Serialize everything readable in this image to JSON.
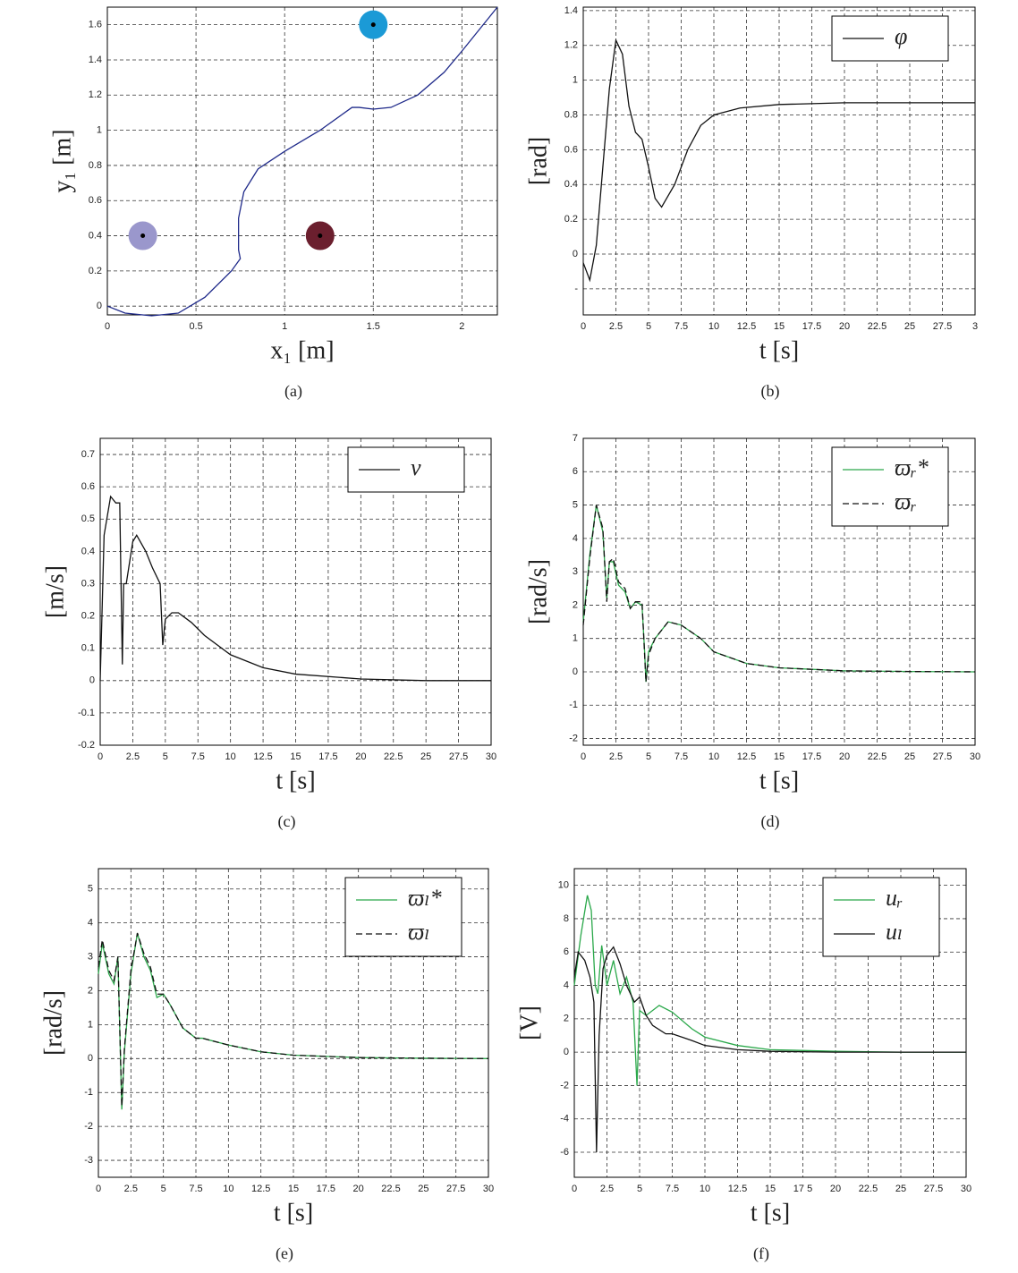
{
  "chart_data": [
    {
      "type": "line",
      "caption": "(a)",
      "xlabel": "x₁ [m]",
      "ylabel": "y₁ [m]",
      "xlim": [
        0,
        2.2
      ],
      "ylim": [
        -0.05,
        1.7
      ],
      "xticks": [
        0,
        0.5,
        1,
        1.5,
        2
      ],
      "yticks": [
        0,
        0.2,
        0.4,
        0.6,
        0.8,
        1,
        1.2,
        1.4,
        1.6
      ],
      "grid": true,
      "series": [
        {
          "color": "#1f2a8a",
          "x": [
            0,
            0.1,
            0.25,
            0.4,
            0.55,
            0.7,
            0.75,
            0.74,
            0.74,
            0.77,
            0.85,
            1,
            1.2,
            1.38,
            1.42,
            1.5,
            1.6,
            1.75,
            1.9,
            2,
            2.2
          ],
          "values": [
            0,
            -0.04,
            -0.055,
            -0.04,
            0.05,
            0.2,
            0.27,
            0.32,
            0.5,
            0.65,
            0.78,
            0.88,
            1,
            1.13,
            1.13,
            1.12,
            1.13,
            1.2,
            1.33,
            1.45,
            1.7
          ]
        }
      ],
      "points": [
        {
          "x": 0.2,
          "y": 0.4,
          "color": "#9a97cc"
        },
        {
          "x": 1.2,
          "y": 0.4,
          "color": "#6b1f2e"
        },
        {
          "x": 1.5,
          "y": 1.6,
          "color": "#1b9ad6"
        }
      ]
    },
    {
      "type": "line",
      "caption": "(b)",
      "xlabel": "t [s]",
      "ylabel": "[rad]",
      "legend": "upper right",
      "xlim": [
        0,
        30
      ],
      "ylim": [
        -0.35,
        1.42
      ],
      "xticks": [
        0,
        2.5,
        5,
        7.5,
        10,
        12.5,
        15,
        17.5,
        20,
        22.5,
        25,
        27.5,
        {
          "value": 30,
          "label": "3"
        }
      ],
      "yticks": [
        {
          "value": -0.2,
          "label": "-"
        },
        0,
        0.2,
        0.4,
        0.6,
        0.8,
        1,
        1.2,
        1.4
      ],
      "grid": true,
      "series": [
        {
          "name": "φ",
          "color": "#111111",
          "x": [
            0,
            0.5,
            1,
            1.5,
            2,
            2.5,
            3,
            3.5,
            4,
            4.5,
            5,
            5.5,
            6,
            7,
            8,
            9,
            10,
            12,
            15,
            20,
            25,
            30
          ],
          "values": [
            -0.05,
            -0.15,
            0.05,
            0.5,
            0.95,
            1.23,
            1.15,
            0.85,
            0.7,
            0.66,
            0.5,
            0.32,
            0.27,
            0.4,
            0.6,
            0.74,
            0.8,
            0.84,
            0.86,
            0.87,
            0.87,
            0.87
          ]
        }
      ]
    },
    {
      "type": "line",
      "caption": "(c)",
      "xlabel": "t [s]",
      "ylabel": "[m/s]",
      "legend": "upper right",
      "xlim": [
        0,
        30
      ],
      "ylim": [
        -0.2,
        0.75
      ],
      "xticks": [
        0,
        2.5,
        5,
        7.5,
        10,
        12.5,
        15,
        17.5,
        20,
        22.5,
        25,
        27.5,
        30
      ],
      "yticks": [
        -0.2,
        -0.1,
        0,
        0.1,
        0.2,
        0.3,
        0.4,
        0.5,
        0.6,
        0.7
      ],
      "grid": true,
      "series": [
        {
          "name": "v",
          "color": "#111111",
          "x": [
            0,
            0.3,
            0.8,
            1.2,
            1.5,
            1.7,
            1.8,
            2,
            2.5,
            2.8,
            3.5,
            4,
            4.6,
            4.8,
            5,
            5.5,
            6,
            7,
            8,
            10,
            12.5,
            15,
            20,
            25,
            30
          ],
          "values": [
            0,
            0.45,
            0.57,
            0.55,
            0.55,
            0.05,
            0.3,
            0.3,
            0.43,
            0.45,
            0.4,
            0.35,
            0.3,
            0.11,
            0.19,
            0.21,
            0.21,
            0.18,
            0.14,
            0.08,
            0.04,
            0.02,
            0.005,
            0,
            0
          ]
        }
      ]
    },
    {
      "type": "line",
      "caption": "(d)",
      "xlabel": "t [s]",
      "ylabel": "[rad/s]",
      "legend": "upper right",
      "xlim": [
        0,
        30
      ],
      "ylim": [
        -2.2,
        7
      ],
      "xticks": [
        0,
        2.5,
        5,
        7.5,
        10,
        12.5,
        15,
        17.5,
        20,
        22.5,
        25,
        27.5,
        30
      ],
      "yticks": [
        -2,
        -1,
        0,
        1,
        2,
        3,
        4,
        5,
        6,
        7
      ],
      "grid": true,
      "series": [
        {
          "name": "ϖᵣ*",
          "color": "#2aa84a",
          "x": [
            0,
            0.5,
            1,
            1.5,
            1.8,
            2,
            2.3,
            2.7,
            3.2,
            3.6,
            4,
            4.5,
            4.7,
            4.8,
            5,
            5.5,
            6.5,
            7.5,
            9,
            10,
            12.5,
            15,
            20,
            25,
            30
          ],
          "values": [
            1.5,
            3.5,
            5,
            4.2,
            2.2,
            3.3,
            3.3,
            2.6,
            2.4,
            1.9,
            2.1,
            2,
            0.6,
            -0.3,
            0.6,
            1,
            1.5,
            1.4,
            1,
            0.6,
            0.25,
            0.12,
            0.03,
            0.01,
            0
          ]
        },
        {
          "name": "ϖᵣ",
          "color": "#111111",
          "linestyle": "dashed",
          "x": [
            0,
            0.5,
            1,
            1.5,
            1.8,
            2,
            2.3,
            2.7,
            3.2,
            3.6,
            4,
            4.5,
            4.7,
            4.8,
            5,
            5.5,
            6.5,
            7.5,
            9,
            10,
            12.5,
            15,
            20,
            25,
            30
          ],
          "values": [
            1.4,
            3.4,
            5,
            4.3,
            2.1,
            3.3,
            3.4,
            2.7,
            2.5,
            1.9,
            2.1,
            2.1,
            0.5,
            -0.3,
            0.5,
            1,
            1.5,
            1.4,
            1,
            0.6,
            0.25,
            0.12,
            0.03,
            0.01,
            0
          ]
        }
      ]
    },
    {
      "type": "line",
      "caption": "(e)",
      "xlabel": "t [s]",
      "ylabel": "[rad/s]",
      "legend": "upper right",
      "xlim": [
        0,
        30
      ],
      "ylim": [
        -3.5,
        5.6
      ],
      "xticks": [
        0,
        2.5,
        5,
        7.5,
        10,
        12.5,
        15,
        17.5,
        20,
        22.5,
        25,
        27.5,
        30
      ],
      "yticks": [
        -3,
        -2,
        -1,
        0,
        1,
        2,
        3,
        4,
        5
      ],
      "grid": true,
      "series": [
        {
          "name": "ϖₗ*",
          "color": "#2aa84a",
          "x": [
            0,
            0.3,
            0.8,
            1.2,
            1.5,
            1.8,
            2,
            2.5,
            3,
            3.5,
            4,
            4.5,
            5,
            5.5,
            6.5,
            7.5,
            8,
            10,
            12.5,
            15,
            20,
            25,
            30
          ],
          "values": [
            2.5,
            3.4,
            2.5,
            2.2,
            3,
            -1.5,
            0.2,
            2.5,
            3.7,
            3,
            2.6,
            1.8,
            1.9,
            1.6,
            0.9,
            0.6,
            0.6,
            0.4,
            0.2,
            0.1,
            0.03,
            0.01,
            0
          ]
        },
        {
          "name": "ϖₗ",
          "color": "#111111",
          "linestyle": "dashed",
          "x": [
            0,
            0.3,
            0.8,
            1.2,
            1.5,
            1.8,
            2,
            2.5,
            3,
            3.5,
            4,
            4.5,
            5,
            5.5,
            6.5,
            7.5,
            8,
            10,
            12.5,
            15,
            20,
            25,
            30
          ],
          "values": [
            2.7,
            3.5,
            2.6,
            2.3,
            3,
            -1.4,
            0.3,
            2.6,
            3.7,
            3.1,
            2.7,
            1.9,
            1.9,
            1.6,
            0.9,
            0.6,
            0.6,
            0.4,
            0.2,
            0.1,
            0.03,
            0.01,
            0
          ]
        }
      ]
    },
    {
      "type": "line",
      "caption": "(f)",
      "xlabel": "t [s]",
      "ylabel": "[V]",
      "legend": "upper right",
      "xlim": [
        0,
        30
      ],
      "ylim": [
        -7.5,
        11
      ],
      "xticks": [
        0,
        2.5,
        5,
        7.5,
        10,
        12.5,
        15,
        {
          "value": 17.5,
          "label": "17 5"
        },
        20,
        22.5,
        25,
        27.5,
        30
      ],
      "yticks": [
        -6,
        -4,
        -2,
        0,
        2,
        4,
        6,
        8,
        10
      ],
      "grid": true,
      "series": [
        {
          "name": "uᵣ",
          "color": "#2aa84a",
          "x": [
            0,
            0.5,
            1,
            1.3,
            1.6,
            1.8,
            2.1,
            2.5,
            3,
            3.5,
            4,
            4.5,
            4.8,
            5,
            5.5,
            6.5,
            7.5,
            9,
            10,
            12.5,
            15,
            20,
            25,
            30
          ],
          "values": [
            4,
            7,
            9.4,
            8.5,
            4,
            3.5,
            6.4,
            4,
            5.5,
            3.5,
            4.5,
            3,
            -2,
            2.5,
            2.2,
            2.8,
            2.4,
            1.4,
            0.9,
            0.4,
            0.15,
            0.05,
            0,
            0
          ]
        },
        {
          "name": "uₗ",
          "color": "#111111",
          "x": [
            0,
            0.3,
            0.8,
            1.2,
            1.5,
            1.7,
            1.9,
            2.2,
            2.5,
            3,
            3.5,
            4,
            4.6,
            5,
            5.5,
            6,
            7,
            7.5,
            9,
            10,
            12.5,
            15,
            20,
            25,
            30
          ],
          "values": [
            4.5,
            6,
            5.5,
            4.5,
            3,
            -6,
            1,
            5,
            5.8,
            6.3,
            5.3,
            4,
            3,
            3.3,
            2.2,
            1.6,
            1.1,
            1.1,
            0.7,
            0.4,
            0.15,
            0.05,
            0,
            0,
            0
          ]
        }
      ]
    }
  ]
}
